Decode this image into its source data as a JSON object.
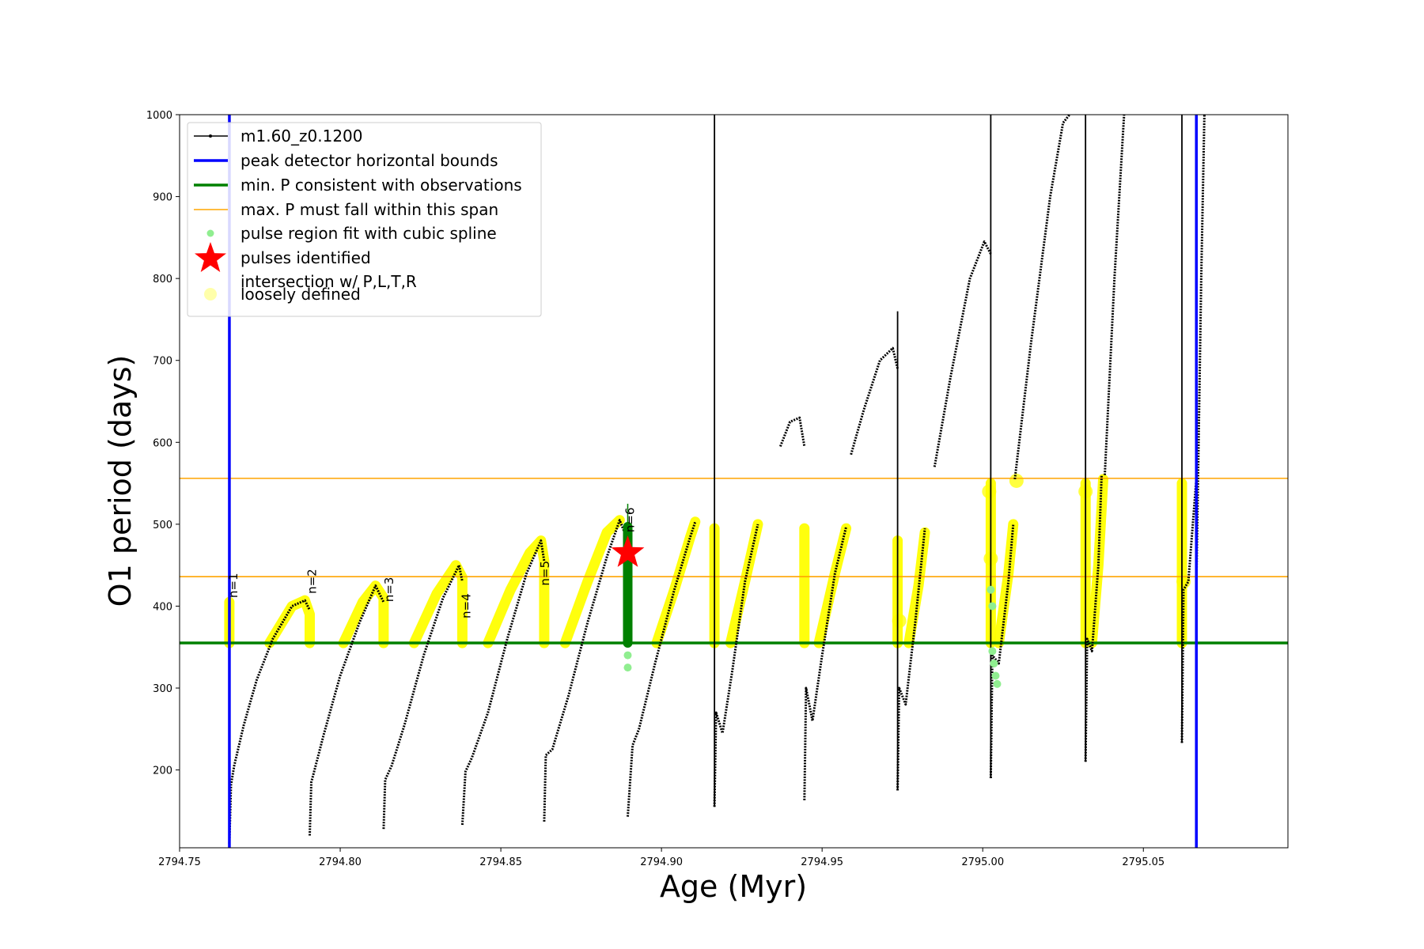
{
  "chart_data": {
    "type": "line",
    "xlabel": "Age (Myr)",
    "ylabel": "O1 period (days)",
    "xlim": [
      2794.75,
      2795.095
    ],
    "ylim": [
      105,
      1000
    ],
    "xticks": [
      2794.75,
      2794.8,
      2794.85,
      2794.9,
      2794.95,
      2795.0,
      2795.05
    ],
    "xtick_labels": [
      "2794.75",
      "2794.80",
      "2794.85",
      "2794.90",
      "2794.95",
      "2795.00",
      "2795.05"
    ],
    "yticks": [
      200,
      300,
      400,
      500,
      600,
      700,
      800,
      900,
      1000
    ],
    "ytick_labels": [
      "200",
      "300",
      "400",
      "500",
      "600",
      "700",
      "800",
      "900",
      "1000"
    ],
    "colors": {
      "track": "#000000",
      "bounds": "#0000ff",
      "minP": "#008000",
      "maxP": "#ffa500",
      "spline": "#90ee90",
      "pulse": "#ff0000",
      "intersection": "#ffff00",
      "loose": "#ffffaa"
    },
    "legend": [
      {
        "key": "track",
        "label": "m1.60_z0.1200"
      },
      {
        "key": "bounds",
        "label": "peak detector horizontal bounds"
      },
      {
        "key": "minP",
        "label": "min. P consistent with observations"
      },
      {
        "key": "maxP",
        "label": "max. P must fall within this span"
      },
      {
        "key": "spline",
        "label": "pulse region fit with cubic spline"
      },
      {
        "key": "pulse",
        "label": "pulses identified"
      },
      {
        "key": "intersection",
        "label": "intersection w/ P,L,T,R"
      },
      {
        "key": "loose",
        "label": "loosely defined"
      }
    ],
    "vlines": [
      2794.7655,
      2795.0665
    ],
    "hline_min_P": 355,
    "hlines_max_P": [
      436,
      556
    ],
    "pulse_star": {
      "x": 2794.8895,
      "y": 465
    },
    "pulse_labels": [
      {
        "text": "n=1",
        "x": 2794.768,
        "y": 410
      },
      {
        "text": "n=2",
        "x": 2794.7925,
        "y": 415
      },
      {
        "text": "n=3",
        "x": 2794.8165,
        "y": 405
      },
      {
        "text": "n=4",
        "x": 2794.8405,
        "y": 385
      },
      {
        "text": "n=5",
        "x": 2794.865,
        "y": 425
      },
      {
        "text": "n=6",
        "x": 2794.8915,
        "y": 490
      }
    ],
    "series": [
      {
        "name": "pulse-1",
        "x": [
          2794.7655,
          2794.766,
          2794.767,
          2794.77,
          2794.774,
          2794.779,
          2794.785,
          2794.789,
          2794.7905
        ],
        "y": [
          110,
          182,
          205,
          255,
          310,
          360,
          400,
          407,
          395
        ]
      },
      {
        "name": "pulse-2",
        "x": [
          2794.7905,
          2794.791,
          2794.792,
          2794.795,
          2794.8,
          2794.806,
          2794.811,
          2794.8135
        ],
        "y": [
          120,
          185,
          200,
          245,
          315,
          380,
          425,
          405
        ]
      },
      {
        "name": "pulse-3",
        "x": [
          2794.8135,
          2794.814,
          2794.816,
          2794.82,
          2794.826,
          2794.832,
          2794.837,
          2794.838
        ],
        "y": [
          128,
          188,
          205,
          255,
          340,
          410,
          450,
          430
        ]
      },
      {
        "name": "pulse-4",
        "x": [
          2794.838,
          2794.839,
          2794.841,
          2794.846,
          2794.852,
          2794.858,
          2794.8625,
          2794.8635
        ],
        "y": [
          133,
          198,
          215,
          270,
          360,
          440,
          480,
          455
        ]
      },
      {
        "name": "pulse-5",
        "x": [
          2794.8635,
          2794.864,
          2794.866,
          2794.871,
          2794.877,
          2794.883,
          2794.887,
          2794.8895
        ],
        "y": [
          137,
          218,
          225,
          290,
          380,
          460,
          505,
          480
        ]
      },
      {
        "name": "pulse-6",
        "x": [
          2794.8895,
          2794.891,
          2794.893,
          2794.898,
          2794.904,
          2794.909,
          2794.9105
        ],
        "y": [
          143,
          230,
          250,
          330,
          420,
          485,
          503
        ]
      },
      {
        "name": "pulse-7",
        "x": [
          2794.9165,
          2794.917,
          2794.919,
          2794.922,
          2794.926,
          2794.93
        ],
        "y": [
          155,
          270,
          245,
          320,
          430,
          500
        ]
      },
      {
        "name": "pulse-8",
        "x": [
          2794.9445,
          2794.945,
          2794.947,
          2794.95,
          2794.954,
          2794.9575
        ],
        "y": [
          163,
          300,
          260,
          340,
          440,
          497
        ]
      },
      {
        "name": "pulse-9",
        "x": [
          2794.9735,
          2794.974,
          2794.976,
          2794.979,
          2794.982
        ],
        "y": [
          175,
          300,
          280,
          380,
          495
        ]
      },
      {
        "name": "pulse-10",
        "x": [
          2795.0025,
          2795.003,
          2795.005,
          2795.008,
          2795.0095
        ],
        "y": [
          190,
          340,
          330,
          430,
          500
        ]
      },
      {
        "name": "pulse-11",
        "x": [
          2795.032,
          2795.0325,
          2795.034,
          2795.036,
          2795.037
        ],
        "y": [
          210,
          360,
          345,
          450,
          560
        ]
      },
      {
        "name": "pulse-12",
        "x": [
          2795.062,
          2795.0625,
          2795.064,
          2795.0665
        ],
        "y": [
          233,
          420,
          430,
          556
        ]
      },
      {
        "name": "upper-1",
        "x": [
          2794.937,
          2794.94,
          2794.943,
          2794.9445
        ],
        "y": [
          595,
          625,
          630,
          595
        ]
      },
      {
        "name": "upper-2",
        "x": [
          2794.959,
          2794.963,
          2794.968,
          2794.972,
          2794.9735
        ],
        "y": [
          585,
          640,
          700,
          715,
          690
        ]
      },
      {
        "name": "upper-3",
        "x": [
          2794.985,
          2794.99,
          2794.996,
          2795.0005,
          2795.0025
        ],
        "y": [
          570,
          680,
          800,
          845,
          830
        ]
      },
      {
        "name": "upper-4",
        "x": [
          2795.01,
          2795.015,
          2795.021,
          2795.025,
          2795.027
        ],
        "y": [
          555,
          720,
          900,
          990,
          1000
        ]
      },
      {
        "name": "upper-5",
        "x": [
          2795.038,
          2795.041,
          2795.044
        ],
        "y": [
          560,
          800,
          1000
        ]
      },
      {
        "name": "upper-6",
        "x": [
          2795.0665,
          2795.068,
          2795.069
        ],
        "y": [
          430,
          800,
          1000
        ]
      }
    ],
    "spikes": [
      {
        "x": 2794.9165,
        "y0": 155,
        "y1": 1000
      },
      {
        "x": 2794.9735,
        "y0": 175,
        "y1": 760
      },
      {
        "x": 2795.0025,
        "y0": 190,
        "y1": 1000
      },
      {
        "x": 2795.032,
        "y0": 210,
        "y1": 1000
      },
      {
        "x": 2795.062,
        "y0": 233,
        "y1": 1000
      }
    ],
    "intersections": [
      {
        "x": [
          2794.7655,
          2794.7655
        ],
        "y": [
          355,
          405
        ]
      },
      {
        "x": [
          2794.778,
          2794.785,
          2794.789,
          2794.7905,
          2794.7905
        ],
        "y": [
          355,
          400,
          407,
          390,
          355
        ]
      },
      {
        "x": [
          2794.801,
          2794.807,
          2794.811,
          2794.8135,
          2794.8135
        ],
        "y": [
          355,
          405,
          425,
          410,
          355
        ]
      },
      {
        "x": [
          2794.823,
          2794.83,
          2794.836,
          2794.838,
          2794.838
        ],
        "y": [
          355,
          415,
          450,
          435,
          355
        ]
      },
      {
        "x": [
          2794.846,
          2794.853,
          2794.859,
          2794.8625,
          2794.8635,
          2794.8635
        ],
        "y": [
          355,
          420,
          465,
          480,
          455,
          355
        ]
      },
      {
        "x": [
          2794.87,
          2794.877,
          2794.883,
          2794.887
        ],
        "y": [
          355,
          430,
          490,
          505
        ]
      },
      {
        "x": [
          2794.8985,
          2794.904,
          2794.909,
          2794.9105
        ],
        "y": [
          355,
          420,
          485,
          503
        ]
      },
      {
        "x": [
          2794.9165,
          2794.9165
        ],
        "y": [
          355,
          495
        ]
      },
      {
        "x": [
          2794.9215,
          2794.926,
          2794.93
        ],
        "y": [
          355,
          430,
          500
        ]
      },
      {
        "x": [
          2794.9445,
          2794.9445
        ],
        "y": [
          355,
          495
        ]
      },
      {
        "x": [
          2794.949,
          2794.954,
          2794.9575
        ],
        "y": [
          355,
          440,
          495
        ]
      },
      {
        "x": [
          2794.9735,
          2794.9735
        ],
        "y": [
          355,
          480
        ]
      },
      {
        "x": [
          2794.977,
          2794.98,
          2794.982
        ],
        "y": [
          355,
          425,
          490
        ]
      },
      {
        "x": [
          2795.0025,
          2795.0025
        ],
        "y": [
          355,
          550
        ]
      },
      {
        "x": [
          2795.005,
          2795.008,
          2795.0095
        ],
        "y": [
          355,
          440,
          500
        ]
      },
      {
        "x": [
          2795.032,
          2795.032
        ],
        "y": [
          355,
          550
        ]
      },
      {
        "x": [
          2795.034,
          2795.036,
          2795.0375
        ],
        "y": [
          355,
          450,
          555
        ]
      },
      {
        "x": [
          2795.062,
          2795.062
        ],
        "y": [
          355,
          550
        ]
      }
    ],
    "loose_points": [
      {
        "x": 2794.974,
        "y": 382
      },
      {
        "x": 2795.0025,
        "y": 458
      },
      {
        "x": 2795.0105,
        "y": 553
      },
      {
        "x": 2795.002,
        "y": 540
      },
      {
        "x": 2795.032,
        "y": 540
      },
      {
        "x": 2795.0625,
        "y": 430
      }
    ],
    "spline_points": [
      {
        "x": 2794.8895,
        "y": 325
      },
      {
        "x": 2794.8895,
        "y": 340
      },
      {
        "x": 2795.003,
        "y": 345
      },
      {
        "x": 2795.0035,
        "y": 330
      },
      {
        "x": 2795.004,
        "y": 315
      },
      {
        "x": 2795.0045,
        "y": 305
      },
      {
        "x": 2795.003,
        "y": 400
      },
      {
        "x": 2795.0025,
        "y": 420
      }
    ],
    "minP_segment": {
      "x": 2794.8895,
      "y0": 355,
      "y1": 497,
      "spike_top": 525
    }
  }
}
